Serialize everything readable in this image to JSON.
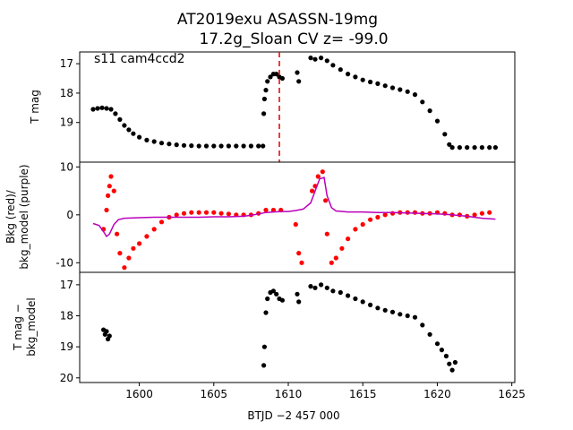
{
  "chart_data": [
    {
      "type": "scatter",
      "title": "AT2019exu  ASASSN-19mg\n17.2g_Sloan CV z= -99.0",
      "annotation": "s11 cam4ccd2",
      "ylabel": "T mag",
      "xlabel": "",
      "xlim": [
        1596,
        1625.2
      ],
      "ylim": [
        20.35,
        16.6
      ],
      "y_inverted": true,
      "yticks": [
        17,
        18,
        19
      ],
      "series": [
        {
          "color": "#000000",
          "points": [
            [
              1596.9,
              18.55
            ],
            [
              1597.2,
              18.52
            ],
            [
              1597.5,
              18.5
            ],
            [
              1597.8,
              18.52
            ],
            [
              1598.1,
              18.55
            ],
            [
              1598.4,
              18.7
            ],
            [
              1598.7,
              18.9
            ],
            [
              1599.0,
              19.1
            ],
            [
              1599.3,
              19.25
            ],
            [
              1599.6,
              19.38
            ],
            [
              1600.0,
              19.5
            ],
            [
              1600.5,
              19.6
            ],
            [
              1601.0,
              19.65
            ],
            [
              1601.5,
              19.7
            ],
            [
              1602.0,
              19.73
            ],
            [
              1602.5,
              19.76
            ],
            [
              1603.0,
              19.78
            ],
            [
              1603.5,
              19.79
            ],
            [
              1604.0,
              19.8
            ],
            [
              1604.5,
              19.8
            ],
            [
              1605.0,
              19.8
            ],
            [
              1605.5,
              19.8
            ],
            [
              1606.0,
              19.8
            ],
            [
              1606.5,
              19.8
            ],
            [
              1607.0,
              19.8
            ],
            [
              1607.5,
              19.8
            ],
            [
              1608.0,
              19.8
            ],
            [
              1608.3,
              19.8
            ],
            [
              1608.35,
              18.7
            ],
            [
              1608.4,
              18.2
            ],
            [
              1608.5,
              17.9
            ],
            [
              1608.6,
              17.6
            ],
            [
              1608.8,
              17.45
            ],
            [
              1609.0,
              17.35
            ],
            [
              1609.2,
              17.35
            ],
            [
              1609.4,
              17.45
            ],
            [
              1609.6,
              17.5
            ],
            [
              1610.6,
              17.3
            ],
            [
              1610.7,
              17.6
            ],
            [
              1611.5,
              16.8
            ],
            [
              1611.8,
              16.85
            ],
            [
              1612.2,
              16.8
            ],
            [
              1612.6,
              16.9
            ],
            [
              1613.0,
              17.05
            ],
            [
              1613.5,
              17.2
            ],
            [
              1614.0,
              17.35
            ],
            [
              1614.5,
              17.45
            ],
            [
              1615.0,
              17.55
            ],
            [
              1615.5,
              17.62
            ],
            [
              1616.0,
              17.68
            ],
            [
              1616.5,
              17.75
            ],
            [
              1617.0,
              17.82
            ],
            [
              1617.5,
              17.88
            ],
            [
              1618.0,
              17.95
            ],
            [
              1618.5,
              18.05
            ],
            [
              1619.0,
              18.3
            ],
            [
              1619.5,
              18.6
            ],
            [
              1620.0,
              18.95
            ],
            [
              1620.5,
              19.4
            ],
            [
              1620.8,
              19.75
            ],
            [
              1621.0,
              19.85
            ],
            [
              1621.5,
              19.85
            ],
            [
              1622.0,
              19.85
            ],
            [
              1622.5,
              19.85
            ],
            [
              1623.0,
              19.85
            ],
            [
              1623.5,
              19.85
            ],
            [
              1623.9,
              19.85
            ]
          ]
        }
      ],
      "vline": {
        "x": 1609.4,
        "color": "#e00000",
        "style": "dashed"
      }
    },
    {
      "type": "line",
      "ylabel": "Bkg (red)/\nbkg_model (purple)",
      "xlabel": "",
      "xlim": [
        1596,
        1625.2
      ],
      "ylim": [
        -12,
        11
      ],
      "yticks": [
        -10,
        0,
        10
      ],
      "series": [
        {
          "color": "#ff0000",
          "kind": "scatter",
          "points": [
            [
              1597.6,
              -3.0
            ],
            [
              1597.8,
              1.0
            ],
            [
              1597.9,
              4.0
            ],
            [
              1598.0,
              6.0
            ],
            [
              1598.1,
              8.0
            ],
            [
              1598.3,
              5.0
            ],
            [
              1598.5,
              -4.0
            ],
            [
              1598.7,
              -8.0
            ],
            [
              1599.0,
              -11.0
            ],
            [
              1599.3,
              -9.0
            ],
            [
              1599.6,
              -7.0
            ],
            [
              1600.0,
              -6.0
            ],
            [
              1600.5,
              -4.5
            ],
            [
              1601.0,
              -3.0
            ],
            [
              1601.5,
              -1.5
            ],
            [
              1602.0,
              -0.5
            ],
            [
              1602.5,
              0.0
            ],
            [
              1603.0,
              0.3
            ],
            [
              1603.5,
              0.5
            ],
            [
              1604.0,
              0.5
            ],
            [
              1604.5,
              0.5
            ],
            [
              1605.0,
              0.5
            ],
            [
              1605.5,
              0.3
            ],
            [
              1606.0,
              0.2
            ],
            [
              1606.5,
              0.0
            ],
            [
              1607.0,
              0.0
            ],
            [
              1607.5,
              0.0
            ],
            [
              1608.0,
              0.3
            ],
            [
              1608.5,
              1.0
            ],
            [
              1609.0,
              1.0
            ],
            [
              1609.5,
              1.0
            ],
            [
              1610.5,
              -2.0
            ],
            [
              1610.7,
              -8.0
            ],
            [
              1610.9,
              -10.0
            ],
            [
              1611.6,
              5.0
            ],
            [
              1611.8,
              6.0
            ],
            [
              1612.0,
              8.0
            ],
            [
              1612.3,
              9.0
            ],
            [
              1612.5,
              3.0
            ],
            [
              1612.6,
              -4.0
            ],
            [
              1612.9,
              -10.0
            ],
            [
              1613.2,
              -9.0
            ],
            [
              1613.6,
              -7.0
            ],
            [
              1614.0,
              -5.0
            ],
            [
              1614.5,
              -3.0
            ],
            [
              1615.0,
              -2.0
            ],
            [
              1615.5,
              -1.0
            ],
            [
              1616.0,
              -0.5
            ],
            [
              1616.5,
              0.0
            ],
            [
              1617.0,
              0.3
            ],
            [
              1617.5,
              0.5
            ],
            [
              1618.0,
              0.5
            ],
            [
              1618.5,
              0.5
            ],
            [
              1619.0,
              0.3
            ],
            [
              1619.5,
              0.3
            ],
            [
              1620.0,
              0.5
            ],
            [
              1620.5,
              0.3
            ],
            [
              1621.0,
              0.0
            ],
            [
              1621.5,
              0.0
            ],
            [
              1622.0,
              -0.3
            ],
            [
              1622.5,
              0.0
            ],
            [
              1623.0,
              0.3
            ],
            [
              1623.5,
              0.5
            ]
          ]
        },
        {
          "color": "#bb00bb",
          "kind": "line",
          "points": [
            [
              1596.9,
              -1.8
            ],
            [
              1597.3,
              -2.2
            ],
            [
              1597.6,
              -3.5
            ],
            [
              1597.8,
              -4.5
            ],
            [
              1598.0,
              -4.0
            ],
            [
              1598.3,
              -2.0
            ],
            [
              1598.6,
              -1.0
            ],
            [
              1599.0,
              -0.7
            ],
            [
              1600.0,
              -0.6
            ],
            [
              1601.0,
              -0.5
            ],
            [
              1602.0,
              -0.5
            ],
            [
              1603.0,
              -0.5
            ],
            [
              1604.0,
              -0.5
            ],
            [
              1605.0,
              -0.4
            ],
            [
              1606.0,
              -0.4
            ],
            [
              1607.0,
              -0.3
            ],
            [
              1607.5,
              -0.1
            ],
            [
              1608.0,
              0.2
            ],
            [
              1608.5,
              0.5
            ],
            [
              1609.0,
              0.6
            ],
            [
              1609.5,
              0.7
            ],
            [
              1610.0,
              0.7
            ],
            [
              1610.5,
              0.9
            ],
            [
              1611.0,
              1.2
            ],
            [
              1611.5,
              2.5
            ],
            [
              1611.8,
              5.0
            ],
            [
              1612.1,
              7.5
            ],
            [
              1612.4,
              7.8
            ],
            [
              1612.6,
              4.0
            ],
            [
              1612.9,
              1.5
            ],
            [
              1613.2,
              0.8
            ],
            [
              1614.0,
              0.6
            ],
            [
              1615.0,
              0.6
            ],
            [
              1616.0,
              0.5
            ],
            [
              1617.0,
              0.5
            ],
            [
              1618.0,
              0.4
            ],
            [
              1619.0,
              0.3
            ],
            [
              1620.0,
              0.2
            ],
            [
              1621.0,
              0.0
            ],
            [
              1622.0,
              -0.3
            ],
            [
              1623.0,
              -0.7
            ],
            [
              1623.9,
              -0.9
            ]
          ]
        }
      ]
    },
    {
      "type": "scatter",
      "ylabel": "T mag −\nbkg_model",
      "xlabel": "BTJD −2 457 000",
      "xlim": [
        1596,
        1625.2
      ],
      "ylim": [
        20.15,
        16.6
      ],
      "y_inverted": true,
      "yticks": [
        17,
        18,
        19,
        20
      ],
      "xticks": [
        1600,
        1605,
        1610,
        1615,
        1620,
        1625
      ],
      "series": [
        {
          "color": "#000000",
          "points": [
            [
              1597.6,
              18.45
            ],
            [
              1597.7,
              18.6
            ],
            [
              1597.8,
              18.5
            ],
            [
              1597.9,
              18.75
            ],
            [
              1598.0,
              18.65
            ],
            [
              1608.35,
              19.6
            ],
            [
              1608.4,
              19.0
            ],
            [
              1608.5,
              17.9
            ],
            [
              1608.6,
              17.45
            ],
            [
              1608.8,
              17.25
            ],
            [
              1609.0,
              17.2
            ],
            [
              1609.2,
              17.3
            ],
            [
              1609.4,
              17.45
            ],
            [
              1609.6,
              17.5
            ],
            [
              1610.6,
              17.3
            ],
            [
              1610.7,
              17.55
            ],
            [
              1611.5,
              17.05
            ],
            [
              1611.8,
              17.1
            ],
            [
              1612.2,
              17.0
            ],
            [
              1612.6,
              17.1
            ],
            [
              1613.0,
              17.2
            ],
            [
              1613.5,
              17.25
            ],
            [
              1614.0,
              17.35
            ],
            [
              1614.5,
              17.45
            ],
            [
              1615.0,
              17.55
            ],
            [
              1615.5,
              17.65
            ],
            [
              1616.0,
              17.75
            ],
            [
              1616.5,
              17.82
            ],
            [
              1617.0,
              17.88
            ],
            [
              1617.5,
              17.95
            ],
            [
              1618.0,
              18.0
            ],
            [
              1618.5,
              18.05
            ],
            [
              1619.0,
              18.3
            ],
            [
              1619.5,
              18.6
            ],
            [
              1620.0,
              18.9
            ],
            [
              1620.3,
              19.1
            ],
            [
              1620.6,
              19.3
            ],
            [
              1620.8,
              19.55
            ],
            [
              1621.0,
              19.75
            ],
            [
              1621.2,
              19.5
            ]
          ]
        }
      ]
    }
  ]
}
